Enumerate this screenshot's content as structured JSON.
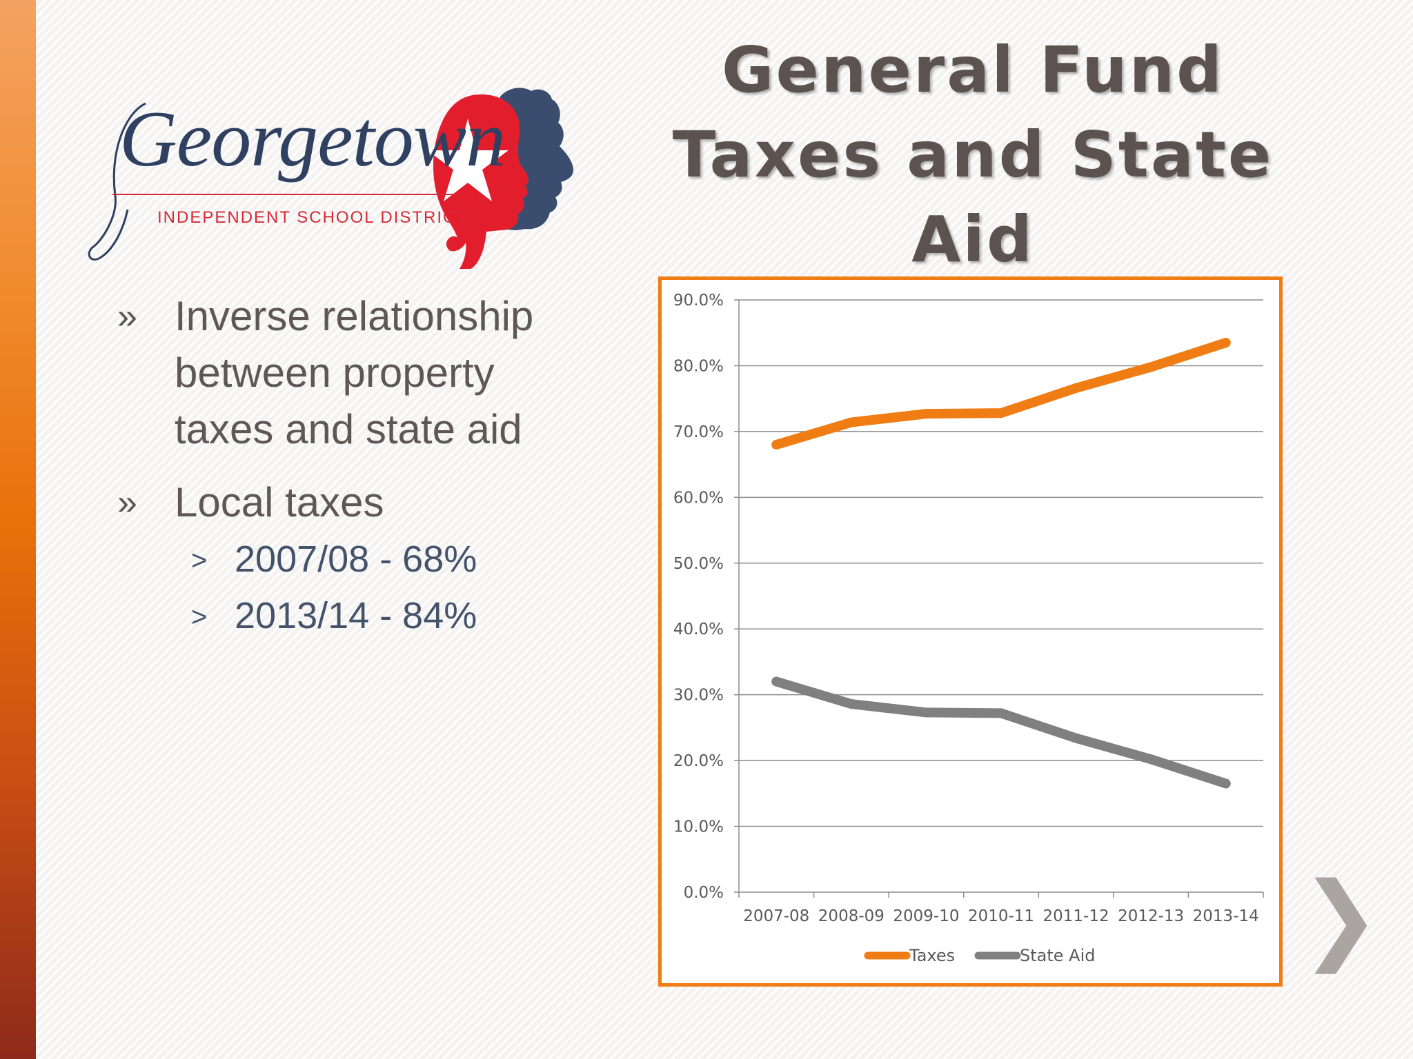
{
  "slide": {
    "title": "General Fund Taxes and State Aid",
    "next_icon": "chevron-right-icon"
  },
  "logo": {
    "word": "Georgetown",
    "subtitle": "INDEPENDENT SCHOOL DISTRICT",
    "colors": {
      "navy": "#2f4060",
      "red": "#d42a35"
    }
  },
  "bullets": [
    {
      "text": "Inverse relationship between property taxes and state aid",
      "sub": []
    },
    {
      "text": "Local taxes",
      "sub": [
        "2007/08 - 68%",
        "2013/14 -  84%"
      ]
    }
  ],
  "bullet_marks": {
    "level1": "»",
    "level2": ">"
  },
  "chart_data": {
    "type": "line",
    "categories": [
      "2007-08",
      "2008-09",
      "2009-10",
      "2010-11",
      "2011-12",
      "2012-13",
      "2013-14"
    ],
    "series": [
      {
        "name": "Taxes",
        "color": "#f07c14",
        "values": [
          68.0,
          71.4,
          72.7,
          72.8,
          76.6,
          79.8,
          83.5
        ]
      },
      {
        "name": "State Aid",
        "color": "#808080",
        "values": [
          32.0,
          28.6,
          27.3,
          27.2,
          23.4,
          20.2,
          16.5
        ]
      }
    ],
    "ylim": [
      0,
      90
    ],
    "yticks": [
      "0.0%",
      "10.0%",
      "20.0%",
      "30.0%",
      "40.0%",
      "50.0%",
      "60.0%",
      "70.0%",
      "80.0%",
      "90.0%"
    ],
    "grid": true,
    "legend": "bottom",
    "border_color": "#f07c14"
  }
}
